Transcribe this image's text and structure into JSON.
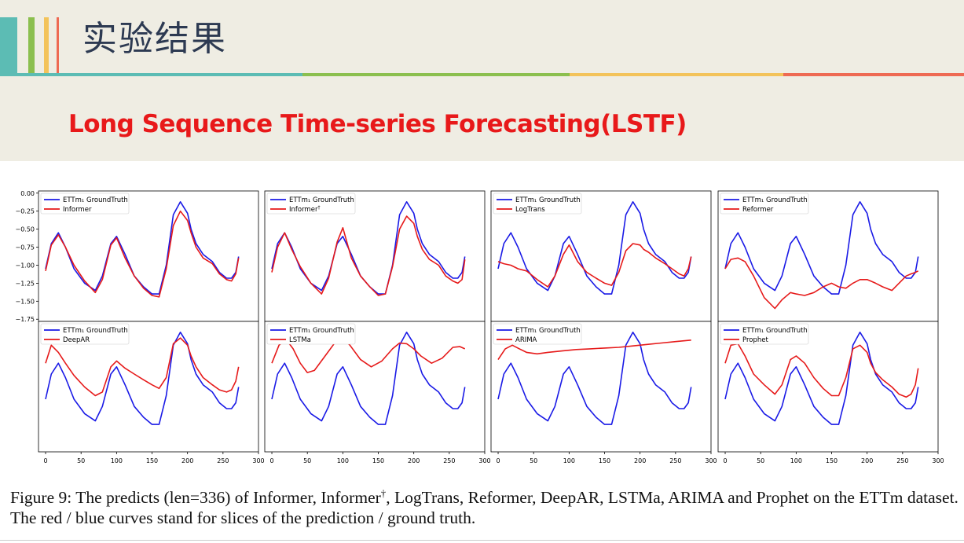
{
  "slide": {
    "title": "实验结果",
    "subtitle": "Long Sequence Time-series Forecasting(LSTF)",
    "accent_colors": [
      "#5cbcb4",
      "#8bbf4e",
      "#f3c35a",
      "#ee6a53"
    ]
  },
  "caption": {
    "prefix": "Figure 9: The predicts (len=336) of Informer, Informer",
    "dagger": "†",
    "suffix": ", LogTrans, Reformer, DeepAR, LSTMa, ARIMA and Prophet on the ETTm dataset. The red / blue curves stand for slices of the prediction / ground truth."
  },
  "chart_data": {
    "type": "line",
    "x_ticks": [
      0,
      50,
      100,
      150,
      200,
      250,
      300
    ],
    "y_ticks": [
      0.0,
      -0.25,
      -0.5,
      -0.75,
      -1.0,
      -1.25,
      -1.5,
      -1.75
    ],
    "y_tick_labels": [
      "0.00",
      "−0.25",
      "−0.50",
      "−0.75",
      "−1.00",
      "−1.25",
      "−1.50",
      "−1.75"
    ],
    "xlim": [
      -10,
      300
    ],
    "ylim": [
      -1.78,
      0.03
    ],
    "legend_position": "top-left",
    "ground_truth_label": "ETTm₁ GroundTruth",
    "ground_truth_color": "#1a1ae6",
    "prediction_color": "#e61a1a",
    "ground_truth": {
      "x": [
        0,
        8,
        18,
        28,
        40,
        55,
        70,
        80,
        92,
        100,
        112,
        125,
        138,
        150,
        160,
        170,
        180,
        190,
        200,
        205,
        212,
        222,
        235,
        245,
        255,
        262,
        268,
        272
      ],
      "y": [
        -1.05,
        -0.7,
        -0.55,
        -0.75,
        -1.05,
        -1.25,
        -1.35,
        -1.15,
        -0.7,
        -0.6,
        -0.85,
        -1.15,
        -1.3,
        -1.4,
        -1.4,
        -1.0,
        -0.3,
        -0.12,
        -0.28,
        -0.5,
        -0.7,
        -0.85,
        -0.95,
        -1.1,
        -1.18,
        -1.18,
        -1.1,
        -0.88
      ]
    },
    "panels": [
      {
        "name": "Informer",
        "x": [
          0,
          8,
          18,
          28,
          40,
          55,
          70,
          80,
          92,
          100,
          112,
          125,
          138,
          150,
          160,
          170,
          180,
          190,
          200,
          205,
          212,
          222,
          235,
          245,
          255,
          262,
          268,
          272
        ],
        "y": [
          -1.08,
          -0.72,
          -0.58,
          -0.75,
          -1.0,
          -1.22,
          -1.38,
          -1.2,
          -0.72,
          -0.62,
          -0.9,
          -1.15,
          -1.32,
          -1.42,
          -1.44,
          -1.05,
          -0.45,
          -0.25,
          -0.38,
          -0.55,
          -0.75,
          -0.9,
          -0.98,
          -1.12,
          -1.2,
          -1.22,
          -1.12,
          -0.9
        ]
      },
      {
        "name": "Informer",
        "sup": "†",
        "x": [
          0,
          8,
          18,
          28,
          40,
          55,
          70,
          80,
          92,
          100,
          112,
          125,
          138,
          150,
          160,
          170,
          180,
          190,
          200,
          205,
          212,
          222,
          235,
          245,
          255,
          262,
          268,
          272
        ],
        "y": [
          -1.1,
          -0.75,
          -0.55,
          -0.78,
          -1.02,
          -1.25,
          -1.4,
          -1.18,
          -0.68,
          -0.48,
          -0.9,
          -1.15,
          -1.3,
          -1.42,
          -1.4,
          -1.02,
          -0.5,
          -0.32,
          -0.42,
          -0.6,
          -0.78,
          -0.92,
          -1.0,
          -1.15,
          -1.22,
          -1.25,
          -1.2,
          -0.92
        ]
      },
      {
        "name": "LogTrans",
        "x": [
          0,
          8,
          18,
          28,
          40,
          55,
          70,
          80,
          92,
          100,
          112,
          125,
          138,
          150,
          160,
          170,
          180,
          190,
          200,
          205,
          212,
          222,
          235,
          245,
          255,
          262,
          268,
          272
        ],
        "y": [
          -0.95,
          -0.98,
          -1.0,
          -1.05,
          -1.08,
          -1.2,
          -1.3,
          -1.15,
          -0.85,
          -0.72,
          -0.95,
          -1.1,
          -1.18,
          -1.25,
          -1.28,
          -1.1,
          -0.8,
          -0.7,
          -0.72,
          -0.78,
          -0.82,
          -0.9,
          -0.98,
          -1.05,
          -1.12,
          -1.15,
          -1.05,
          -0.88
        ]
      },
      {
        "name": "Reformer",
        "x": [
          0,
          8,
          18,
          28,
          40,
          55,
          70,
          80,
          92,
          100,
          112,
          125,
          138,
          150,
          160,
          170,
          180,
          190,
          200,
          205,
          212,
          222,
          235,
          245,
          255,
          262,
          268,
          272
        ],
        "y": [
          -1.05,
          -0.92,
          -0.9,
          -0.95,
          -1.15,
          -1.45,
          -1.6,
          -1.48,
          -1.38,
          -1.4,
          -1.42,
          -1.38,
          -1.3,
          -1.25,
          -1.3,
          -1.32,
          -1.25,
          -1.2,
          -1.2,
          -1.22,
          -1.25,
          -1.3,
          -1.35,
          -1.25,
          -1.15,
          -1.12,
          -1.1,
          -1.08
        ]
      },
      {
        "name": "DeepAR",
        "x": [
          0,
          8,
          18,
          28,
          40,
          55,
          70,
          80,
          92,
          100,
          112,
          125,
          138,
          150,
          160,
          170,
          180,
          190,
          200,
          205,
          212,
          222,
          235,
          245,
          255,
          262,
          268,
          272
        ],
        "y": [
          -0.55,
          -0.3,
          -0.4,
          -0.55,
          -0.72,
          -0.88,
          -1.0,
          -0.95,
          -0.6,
          -0.52,
          -0.62,
          -0.7,
          -0.78,
          -0.85,
          -0.9,
          -0.75,
          -0.28,
          -0.2,
          -0.3,
          -0.45,
          -0.6,
          -0.75,
          -0.85,
          -0.92,
          -0.95,
          -0.92,
          -0.8,
          -0.6
        ]
      },
      {
        "name": "LSTMa",
        "x": [
          0,
          10,
          20,
          30,
          40,
          50,
          60,
          75,
          90,
          100,
          110,
          125,
          140,
          155,
          170,
          180,
          190,
          200,
          210,
          225,
          240,
          255,
          265,
          272
        ],
        "y": [
          -0.55,
          -0.3,
          -0.22,
          -0.35,
          -0.55,
          -0.68,
          -0.65,
          -0.45,
          -0.25,
          -0.2,
          -0.3,
          -0.5,
          -0.6,
          -0.52,
          -0.35,
          -0.27,
          -0.28,
          -0.35,
          -0.45,
          -0.55,
          -0.48,
          -0.33,
          -0.32,
          -0.35
        ]
      },
      {
        "name": "ARIMA",
        "x": [
          0,
          10,
          20,
          30,
          40,
          55,
          70,
          90,
          110,
          130,
          150,
          170,
          190,
          210,
          230,
          250,
          272
        ],
        "y": [
          -0.5,
          -0.35,
          -0.3,
          -0.35,
          -0.4,
          -0.42,
          -0.4,
          -0.38,
          -0.36,
          -0.35,
          -0.34,
          -0.33,
          -0.31,
          -0.29,
          -0.27,
          -0.25,
          -0.23
        ]
      },
      {
        "name": "Prophet",
        "x": [
          0,
          8,
          18,
          28,
          40,
          55,
          70,
          80,
          92,
          100,
          112,
          125,
          138,
          150,
          160,
          170,
          180,
          190,
          200,
          205,
          212,
          222,
          235,
          245,
          255,
          262,
          268,
          272
        ],
        "y": [
          -0.55,
          -0.3,
          -0.28,
          -0.45,
          -0.7,
          -0.85,
          -0.98,
          -0.85,
          -0.5,
          -0.45,
          -0.55,
          -0.75,
          -0.9,
          -1.0,
          -1.0,
          -0.75,
          -0.35,
          -0.3,
          -0.4,
          -0.55,
          -0.68,
          -0.78,
          -0.88,
          -0.98,
          -1.02,
          -0.98,
          -0.85,
          -0.62
        ]
      }
    ]
  }
}
